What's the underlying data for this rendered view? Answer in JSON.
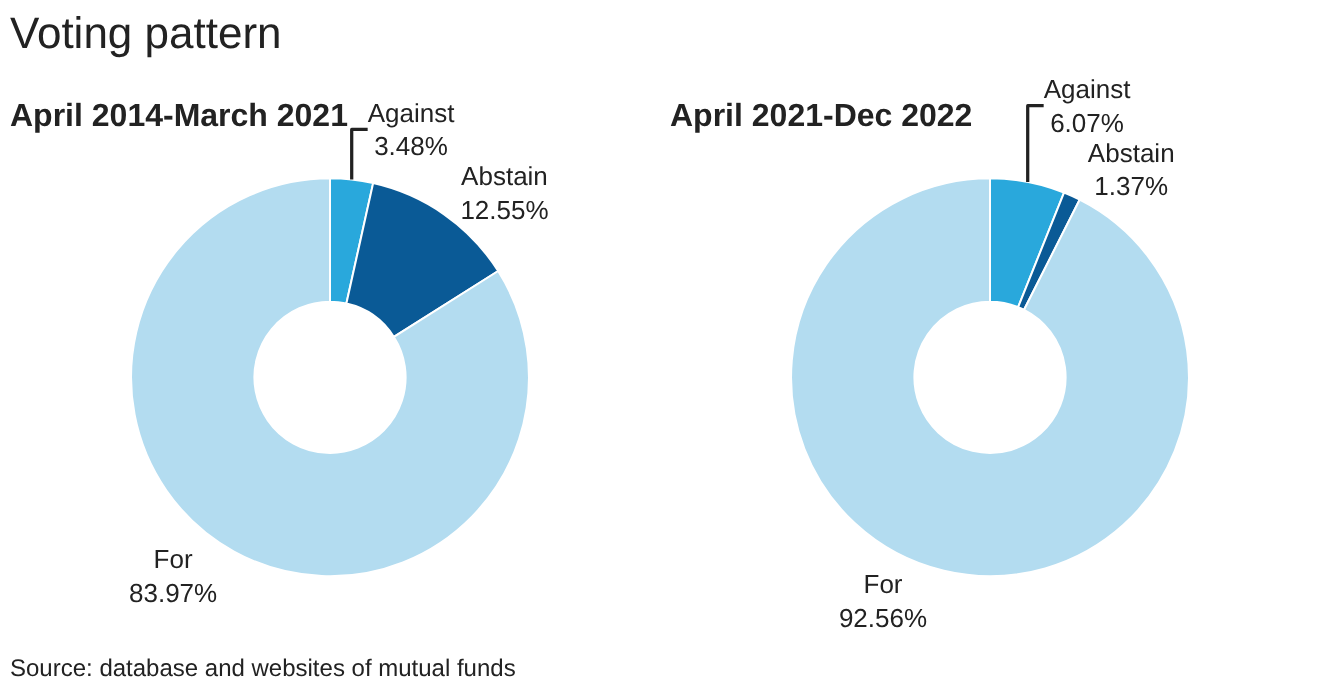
{
  "chart_data": [
    {
      "type": "donut",
      "title": "Voting pattern",
      "subtitle": "April 2014-March 2021",
      "categories": [
        "Against",
        "Abstain",
        "For"
      ],
      "values": [
        3.48,
        12.55,
        83.97
      ],
      "value_labels": [
        "3.48%",
        "12.55%",
        "83.97%"
      ],
      "colors": [
        "#29a8dc",
        "#0a5a96",
        "#b3dcf0"
      ],
      "annotations": [
        "Source: database and websites of mutual funds"
      ]
    },
    {
      "type": "donut",
      "subtitle": "April 2021-Dec 2022",
      "categories": [
        "Against",
        "Abstain",
        "For"
      ],
      "values": [
        6.07,
        1.37,
        92.56
      ],
      "value_labels": [
        "6.07%",
        "1.37%",
        "92.56%"
      ],
      "colors": [
        "#29a8dc",
        "#0a5a96",
        "#b3dcf0"
      ]
    }
  ]
}
